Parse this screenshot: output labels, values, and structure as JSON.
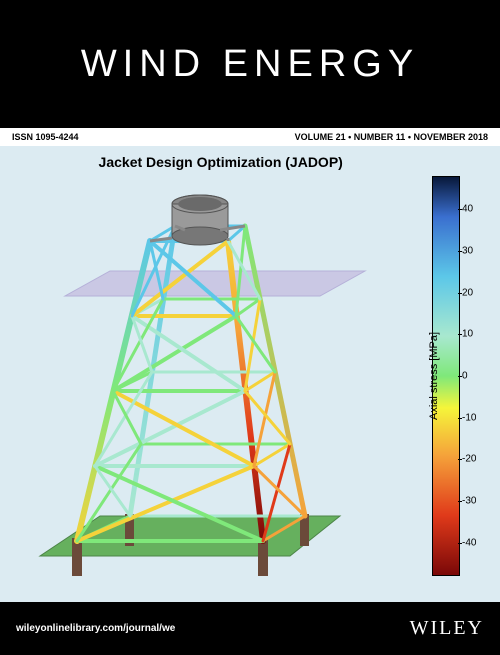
{
  "header": {
    "journal_title": "WIND ENERGY"
  },
  "infobar": {
    "issn": "ISSN 1095-4244",
    "issue": "VOLUME 21 • NUMBER 11 • NOVEMBER 2018"
  },
  "figure": {
    "title": "Jacket Design Optimization (JADOP)",
    "background_color": "#dcebf2",
    "water_plane_color": "#c5bde0",
    "seabed_color": "#5aaa4e",
    "cylinder_color": "#9a9a9a",
    "foundation_color": "#6b4a3a",
    "type": "3d-structural-diagram",
    "structure": "offshore-wind-jacket-foundation",
    "bays": 4,
    "legs": 4
  },
  "colorbar": {
    "label": "Axial stress [MPa]",
    "min": -48,
    "max": 48,
    "ticks": [
      40,
      30,
      20,
      10,
      0,
      -10,
      -20,
      -30,
      -40
    ],
    "gradient_stops": [
      {
        "pct": 0,
        "color": "#08183a"
      },
      {
        "pct": 10,
        "color": "#3a6fcf"
      },
      {
        "pct": 25,
        "color": "#5cc7e8"
      },
      {
        "pct": 40,
        "color": "#a8e8cf"
      },
      {
        "pct": 50,
        "color": "#7fe87a"
      },
      {
        "pct": 58,
        "color": "#f5f53a"
      },
      {
        "pct": 70,
        "color": "#f5a23a"
      },
      {
        "pct": 85,
        "color": "#e03a1a"
      },
      {
        "pct": 100,
        "color": "#7a0808"
      }
    ]
  },
  "footer": {
    "url": "wileyonlinelibrary.com/journal/we",
    "publisher": "WILEY"
  },
  "colors": {
    "black": "#000000",
    "white": "#ffffff"
  }
}
